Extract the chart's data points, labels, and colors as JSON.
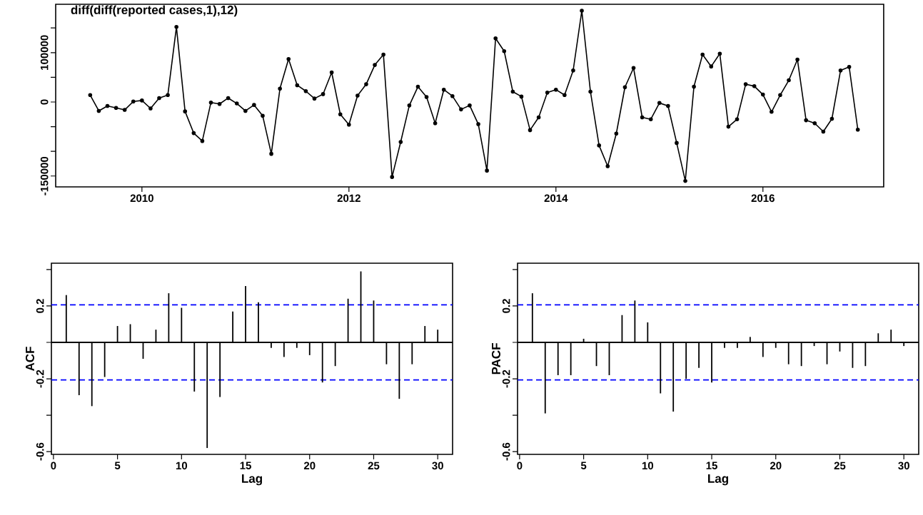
{
  "chart_data": [
    {
      "type": "line",
      "title": "diff(diff(reported cases,1),12)",
      "color": "#000000",
      "marker": "circle",
      "x": [
        "2009-07",
        "2009-08",
        "2009-09",
        "2009-10",
        "2009-11",
        "2009-12",
        "2010-01",
        "2010-02",
        "2010-03",
        "2010-04",
        "2010-05",
        "2010-06",
        "2010-07",
        "2010-08",
        "2010-09",
        "2010-10",
        "2010-11",
        "2010-12",
        "2011-01",
        "2011-02",
        "2011-03",
        "2011-04",
        "2011-05",
        "2011-06",
        "2011-07",
        "2011-08",
        "2011-09",
        "2011-10",
        "2011-11",
        "2011-12",
        "2012-01",
        "2012-02",
        "2012-03",
        "2012-04",
        "2012-05",
        "2012-06",
        "2012-07",
        "2012-08",
        "2012-09",
        "2012-10",
        "2012-11",
        "2012-12",
        "2013-01",
        "2013-02",
        "2013-03",
        "2013-04",
        "2013-05",
        "2013-06",
        "2013-07",
        "2013-08",
        "2013-09",
        "2013-10",
        "2013-11",
        "2013-12",
        "2014-01",
        "2014-02",
        "2014-03",
        "2014-04",
        "2014-05",
        "2014-06",
        "2014-07",
        "2014-08",
        "2014-09",
        "2014-10",
        "2014-11",
        "2014-12",
        "2015-01",
        "2015-02",
        "2015-03",
        "2015-04",
        "2015-05",
        "2015-06",
        "2015-07",
        "2015-08",
        "2015-09",
        "2015-10",
        "2015-11",
        "2015-12",
        "2016-01",
        "2016-02",
        "2016-03",
        "2016-04",
        "2016-05",
        "2016-06",
        "2016-07",
        "2016-08",
        "2016-09",
        "2016-10",
        "2016-11",
        "2016-12"
      ],
      "values": [
        14000,
        -18000,
        -8000,
        -12000,
        -16000,
        1000,
        3000,
        -13000,
        8000,
        14000,
        152000,
        -19000,
        -63000,
        -79000,
        -1000,
        -4000,
        8000,
        -3000,
        -18000,
        -6000,
        -28000,
        -105000,
        27000,
        87000,
        34000,
        22000,
        7000,
        16000,
        60000,
        -25000,
        -46000,
        13000,
        36000,
        75000,
        96000,
        -152000,
        -81000,
        -7000,
        31000,
        10000,
        -43000,
        25000,
        12000,
        -15000,
        -7000,
        -45000,
        -139000,
        129000,
        103000,
        21000,
        11000,
        -57000,
        -31000,
        19000,
        25000,
        14000,
        64000,
        185000,
        21000,
        -88000,
        -130000,
        -64000,
        30000,
        69000,
        -31000,
        -35000,
        -2000,
        -8000,
        -83000,
        -160000,
        31000,
        96000,
        72000,
        98000,
        -50000,
        -35000,
        36000,
        32000,
        15000,
        -20000,
        14000,
        44000,
        86000,
        -37000,
        -43000,
        -60000,
        -34000,
        64000,
        71000,
        -56000
      ],
      "xlim": [
        "2009-03",
        "2017-03"
      ],
      "xticks": [
        "2010",
        "2012",
        "2014",
        "2016"
      ],
      "ylim": [
        -172000,
        198000
      ],
      "yticks": [
        -150000,
        {
          "value": -100000,
          "label": null
        },
        {
          "value": -50000,
          "label": null
        },
        0,
        {
          "value": 50000,
          "label": null
        },
        100000,
        {
          "value": 150000,
          "label": null
        }
      ]
    },
    {
      "type": "bar",
      "xlabel": "Lag",
      "ylabel": "ACF",
      "color": "#000000",
      "x": [
        1,
        2,
        3,
        4,
        5,
        6,
        7,
        8,
        9,
        10,
        11,
        12,
        13,
        14,
        15,
        16,
        17,
        18,
        19,
        20,
        21,
        22,
        23,
        24,
        25,
        26,
        27,
        28,
        29,
        30
      ],
      "values": [
        0.26,
        -0.29,
        -0.35,
        -0.19,
        0.09,
        0.1,
        -0.09,
        0.07,
        0.27,
        0.19,
        -0.27,
        -0.58,
        -0.3,
        0.17,
        0.31,
        0.22,
        -0.03,
        -0.08,
        -0.03,
        -0.07,
        -0.22,
        -0.13,
        0.24,
        0.39,
        0.23,
        -0.12,
        -0.31,
        -0.12,
        0.09,
        0.07
      ],
      "xlim": [
        -0.16,
        31.16
      ],
      "xticks": [
        0,
        5,
        10,
        15,
        20,
        25,
        30
      ],
      "ylim": [
        -0.615,
        0.435
      ],
      "yticks": [
        -0.6,
        {
          "value": -0.4,
          "label": null
        },
        -0.2,
        {
          "value": 0,
          "label": null
        },
        0.2,
        {
          "value": 0.4,
          "label": null
        }
      ],
      "ref_lines": [
        {
          "axis": "y",
          "value": 0,
          "color": "#000000",
          "line_style": "solid"
        },
        {
          "axis": "y",
          "value": 0.206,
          "color": "#0000ff",
          "line_style": "dashed"
        },
        {
          "axis": "y",
          "value": -0.206,
          "color": "#0000ff",
          "line_style": "dashed"
        }
      ]
    },
    {
      "type": "bar",
      "xlabel": "Lag",
      "ylabel": "PACF",
      "color": "#000000",
      "x": [
        1,
        2,
        3,
        4,
        5,
        6,
        7,
        8,
        9,
        10,
        11,
        12,
        13,
        14,
        15,
        16,
        17,
        18,
        19,
        20,
        21,
        22,
        23,
        24,
        25,
        26,
        27,
        28,
        29,
        30
      ],
      "values": [
        0.27,
        -0.39,
        -0.18,
        -0.18,
        0.02,
        -0.13,
        -0.18,
        0.15,
        0.23,
        0.11,
        -0.28,
        -0.38,
        -0.2,
        -0.14,
        -0.22,
        -0.03,
        -0.03,
        0.03,
        -0.08,
        -0.03,
        -0.12,
        -0.13,
        -0.02,
        -0.12,
        -0.05,
        -0.14,
        -0.13,
        0.05,
        0.07,
        -0.02
      ],
      "xlim": [
        -0.16,
        31.16
      ],
      "xticks": [
        0,
        5,
        10,
        15,
        20,
        25,
        30
      ],
      "ylim": [
        -0.615,
        0.435
      ],
      "yticks": [
        -0.6,
        {
          "value": -0.4,
          "label": null
        },
        -0.2,
        {
          "value": 0,
          "label": null
        },
        0.2,
        {
          "value": 0.4,
          "label": null
        }
      ],
      "ref_lines": [
        {
          "axis": "y",
          "value": 0,
          "color": "#000000",
          "line_style": "solid"
        },
        {
          "axis": "y",
          "value": 0.206,
          "color": "#0000ff",
          "line_style": "dashed"
        },
        {
          "axis": "y",
          "value": -0.206,
          "color": "#0000ff",
          "line_style": "dashed"
        }
      ]
    }
  ]
}
